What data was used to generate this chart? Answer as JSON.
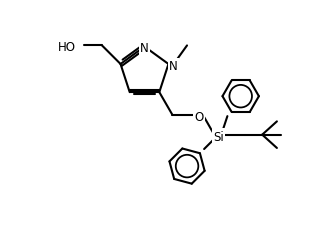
{
  "background_color": "#ffffff",
  "line_color": "#000000",
  "line_width": 1.5,
  "font_size": 8.5,
  "figsize": [
    3.24,
    2.26
  ],
  "dpi": 100,
  "xlim": [
    0,
    9
  ],
  "ylim": [
    0,
    6.3
  ]
}
